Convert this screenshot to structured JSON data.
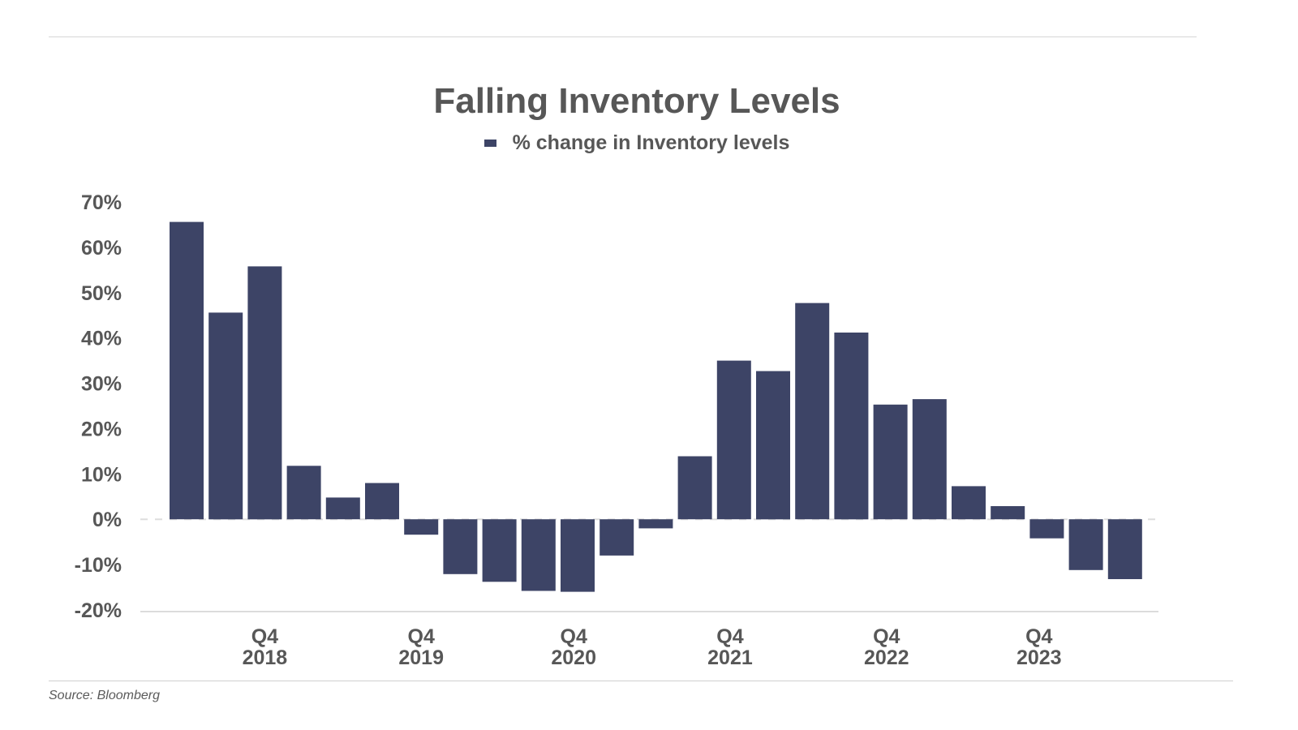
{
  "chart_data": {
    "type": "bar",
    "title": "Falling Inventory Levels",
    "series": [
      {
        "name": "% change in Inventory levels",
        "color": "#3d4466",
        "values": [
          65.6,
          45.6,
          55.8,
          11.8,
          4.8,
          8.0,
          -3.4,
          -12.1,
          -13.8,
          -15.8,
          -16.0,
          -8.0,
          -2.0,
          13.9,
          35.0,
          32.7,
          47.7,
          41.2,
          25.3,
          26.5,
          7.3,
          2.9,
          -4.2,
          -11.2,
          -13.2
        ]
      }
    ],
    "ylim": [
      -20,
      70
    ],
    "yticks": [
      70,
      60,
      50,
      40,
      30,
      20,
      10,
      0,
      -10,
      -20
    ],
    "ytick_labels": [
      "70%",
      "60%",
      "50%",
      "40%",
      "30%",
      "20%",
      "10%",
      "0%",
      "-10%",
      "-20%"
    ],
    "xtick_labels": [
      {
        "line1": "Q4",
        "line2": "2018"
      },
      {
        "line1": "Q4",
        "line2": "2019"
      },
      {
        "line1": "Q4",
        "line2": "2020"
      },
      {
        "line1": "Q4",
        "line2": "2021"
      },
      {
        "line1": "Q4",
        "line2": "2022"
      },
      {
        "line1": "Q4",
        "line2": "2023"
      }
    ],
    "xlabel": "",
    "ylabel": "",
    "grid": false,
    "zero_line": "dashed",
    "legend_position": "top-center"
  },
  "source": "Source: Bloomberg"
}
